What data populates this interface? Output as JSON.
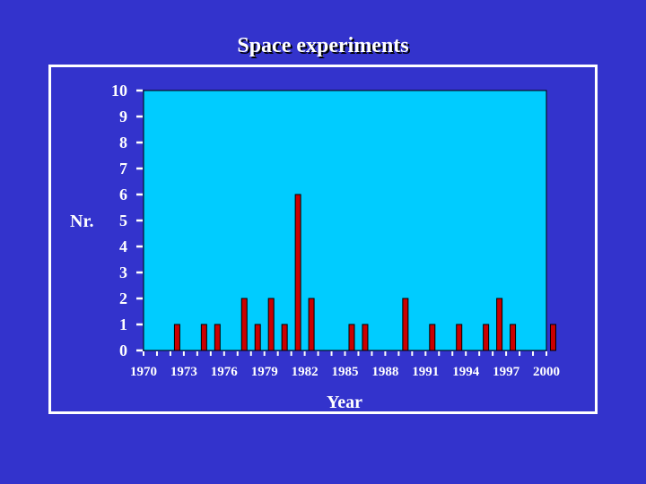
{
  "slide": {
    "title": "Space experiments"
  },
  "chart_data": {
    "type": "bar",
    "title": "Space experiments",
    "xlabel": "Year",
    "ylabel": "Nr.",
    "ylim": [
      0,
      10
    ],
    "xlim": [
      1970,
      2000
    ],
    "yticks": [
      0,
      1,
      2,
      3,
      4,
      5,
      6,
      7,
      8,
      9,
      10
    ],
    "xticks": [
      1970,
      1973,
      1976,
      1979,
      1982,
      1985,
      1988,
      1991,
      1994,
      1997,
      2000
    ],
    "x": [
      1972,
      1974,
      1975,
      1977,
      1978,
      1979,
      1980,
      1981,
      1982,
      1985,
      1986,
      1989,
      1991,
      1993,
      1995,
      1996,
      1997,
      2000
    ],
    "values": [
      1,
      1,
      1,
      2,
      1,
      2,
      1,
      6,
      2,
      1,
      1,
      2,
      1,
      1,
      1,
      2,
      1,
      1
    ],
    "grid": false,
    "colors": {
      "background": "#3333cc",
      "plot_area": "#00ccff",
      "bar": "#cc0000",
      "bar_edge": "#000000",
      "text": "#ffffff"
    }
  }
}
